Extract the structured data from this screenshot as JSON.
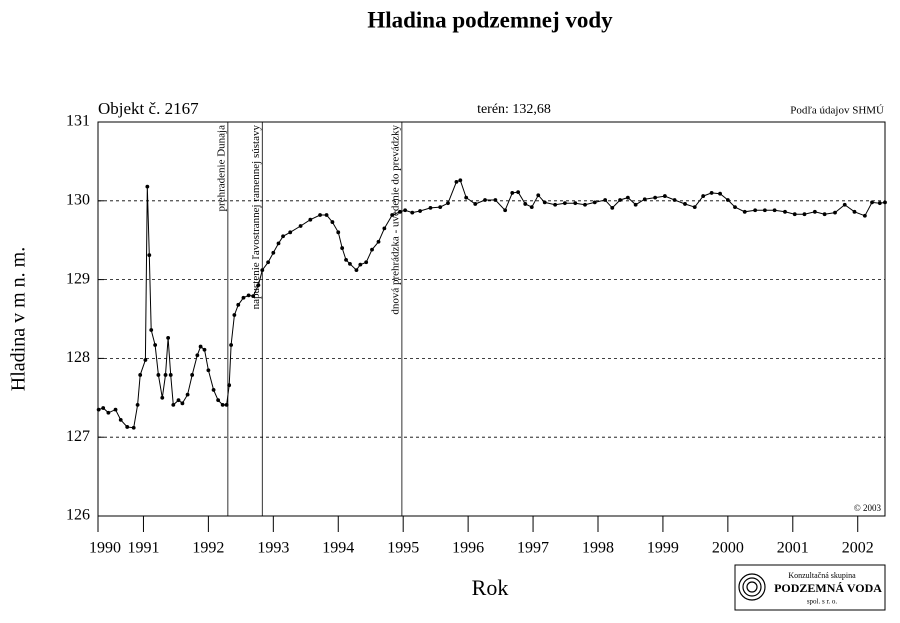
{
  "chart_data": {
    "type": "line",
    "title": "Hladina podzemnej vody",
    "object_label": "Objekt č. 2167",
    "terrain_label": "terén: 132,68",
    "source_label": "Podľa údajov SHMÚ",
    "copyright": "© 2003",
    "xlabel": "Rok",
    "ylabel": "Hladina v m n. m.",
    "logo": {
      "line1": "Konzultačná skupina",
      "line2": "PODZEMNÁ VODA",
      "line3": "spol. s r. o."
    },
    "xlim": [
      1990.3,
      2002.42
    ],
    "ylim": [
      126,
      131
    ],
    "xticks": [
      {
        "value": 1990.3,
        "label": "1990"
      },
      1991,
      1992,
      1993,
      1994,
      1995,
      1996,
      1997,
      1998,
      1999,
      2000,
      2001,
      2002
    ],
    "yticks": [
      126,
      127,
      128,
      129,
      130,
      131
    ],
    "grid": true,
    "annotations": [
      {
        "x": 1992.3,
        "text": "prehradenie Dunaja"
      },
      {
        "x": 1992.83,
        "text": "napustenie ľavostrannej ramennej sústavy"
      },
      {
        "x": 1994.98,
        "text": "dnová prehrádzka - uvedenie do prevádzky"
      }
    ],
    "x": [
      1990.31,
      1990.38,
      1990.46,
      1990.57,
      1990.65,
      1990.75,
      1990.85,
      1990.91,
      1990.95,
      1991.03,
      1991.06,
      1991.09,
      1991.12,
      1991.18,
      1991.23,
      1991.29,
      1991.34,
      1991.38,
      1991.42,
      1991.46,
      1991.54,
      1991.6,
      1991.68,
      1991.75,
      1991.83,
      1991.88,
      1991.94,
      1992.0,
      1992.08,
      1992.15,
      1992.22,
      1992.28,
      1992.32,
      1992.35,
      1992.4,
      1992.46,
      1992.54,
      1992.62,
      1992.69,
      1992.77,
      1992.83,
      1992.92,
      1993.0,
      1993.08,
      1993.15,
      1993.26,
      1993.42,
      1993.57,
      1993.72,
      1993.82,
      1993.91,
      1994.0,
      1994.06,
      1994.12,
      1994.18,
      1994.28,
      1994.34,
      1994.43,
      1994.52,
      1994.62,
      1994.71,
      1994.83,
      1994.95,
      1995.03,
      1995.14,
      1995.26,
      1995.42,
      1995.57,
      1995.69,
      1995.82,
      1995.88,
      1995.97,
      1996.11,
      1996.26,
      1996.42,
      1996.57,
      1996.68,
      1996.77,
      1996.88,
      1996.98,
      1997.08,
      1997.18,
      1997.34,
      1997.49,
      1997.65,
      1997.8,
      1997.95,
      1998.11,
      1998.22,
      1998.34,
      1998.46,
      1998.58,
      1998.72,
      1998.88,
      1999.03,
      1999.18,
      1999.34,
      1999.49,
      1999.62,
      1999.75,
      1999.88,
      2000.0,
      2000.11,
      2000.26,
      2000.42,
      2000.57,
      2000.72,
      2000.88,
      2001.03,
      2001.18,
      2001.34,
      2001.49,
      2001.65,
      2001.8,
      2001.95,
      2002.11,
      2002.22,
      2002.34,
      2002.42
    ],
    "series": [
      {
        "name": "Hladina",
        "color": "#000000",
        "values": [
          127.35,
          127.37,
          127.31,
          127.35,
          127.22,
          127.13,
          127.12,
          127.41,
          127.79,
          127.98,
          130.18,
          129.31,
          128.36,
          128.17,
          127.79,
          127.5,
          127.79,
          128.26,
          127.79,
          127.41,
          127.47,
          127.43,
          127.54,
          127.79,
          128.04,
          128.15,
          128.11,
          127.85,
          127.6,
          127.47,
          127.41,
          127.41,
          127.66,
          128.17,
          128.55,
          128.68,
          128.77,
          128.8,
          128.79,
          128.93,
          129.12,
          129.22,
          129.34,
          129.46,
          129.55,
          129.6,
          129.68,
          129.76,
          129.82,
          129.82,
          129.73,
          129.6,
          129.4,
          129.25,
          129.2,
          129.12,
          129.19,
          129.22,
          129.38,
          129.48,
          129.65,
          129.82,
          129.86,
          129.88,
          129.85,
          129.87,
          129.91,
          129.92,
          129.97,
          130.24,
          130.26,
          130.04,
          129.96,
          130.01,
          130.01,
          129.88,
          130.1,
          130.11,
          129.96,
          129.92,
          130.07,
          129.98,
          129.95,
          129.97,
          129.97,
          129.95,
          129.98,
          130.01,
          129.91,
          130.01,
          130.04,
          129.95,
          130.02,
          130.04,
          130.06,
          130.01,
          129.96,
          129.92,
          130.06,
          130.1,
          130.09,
          130.01,
          129.92,
          129.86,
          129.88,
          129.88,
          129.88,
          129.86,
          129.83,
          129.83,
          129.86,
          129.83,
          129.85,
          129.95,
          129.86,
          129.81,
          129.98,
          129.97,
          129.98
        ]
      }
    ]
  }
}
